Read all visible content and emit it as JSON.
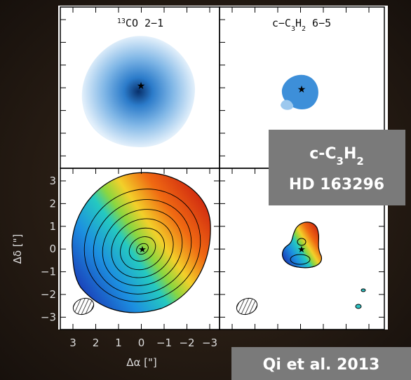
{
  "panels": [
    {
      "title": {
        "sup": "13",
        "text": "CO 2−1"
      }
    },
    {
      "title": {
        "pre": "c−C",
        "sub1": "3",
        "mid": "H",
        "sub2": "2",
        "post": " 6−5"
      }
    }
  ],
  "axes": {
    "y_label": "Δδ [\"]",
    "x_label": "Δα [\"]",
    "y_ticks": [
      "3",
      "2",
      "1",
      "0",
      "−1",
      "−2",
      "−3"
    ],
    "x_ticks": [
      "3",
      "2",
      "1",
      "0",
      "−1",
      "−2",
      "−3"
    ]
  },
  "overlay": {
    "line1": {
      "pre": "c-C",
      "sub": "3",
      "mid": "H",
      "sub2": "2"
    },
    "line2": "HD 163296"
  },
  "credit": "Qi et al. 2013"
}
